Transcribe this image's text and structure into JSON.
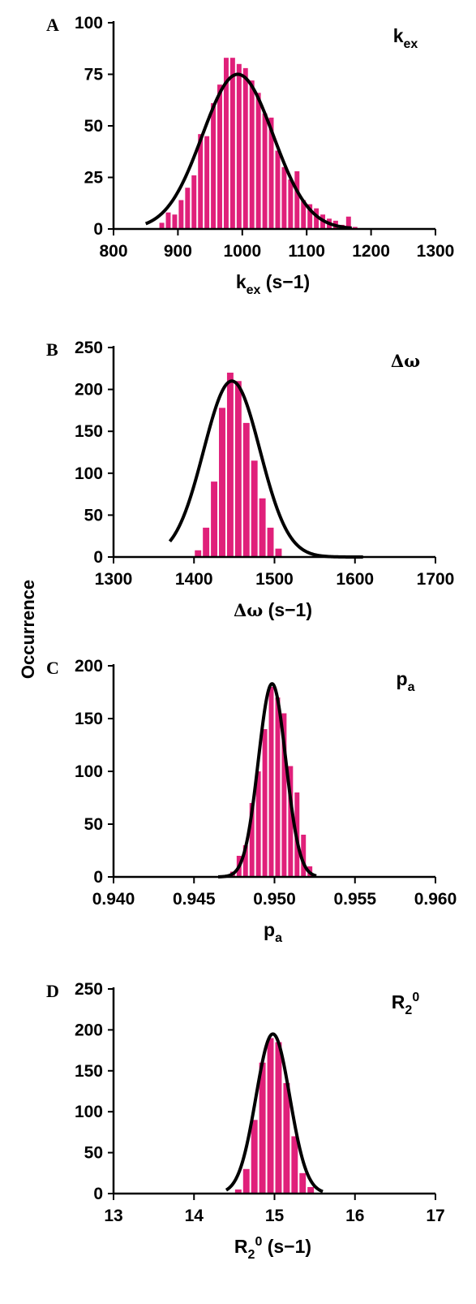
{
  "figure": {
    "ylabel": "Occurrence"
  },
  "chart_data": [
    {
      "type": "bar",
      "panel": "A",
      "param_label": {
        "base": "k",
        "sub": "ex",
        "sup": "",
        "serif": false
      },
      "xlabel": {
        "base": "k",
        "sub": "ex",
        "sup": "",
        "unit": " (s−1)",
        "serif": false
      },
      "xlim": [
        800,
        1300
      ],
      "xticks": [
        "800",
        "900",
        "1000",
        "1100",
        "1200",
        "1300"
      ],
      "ylim": [
        0,
        100
      ],
      "yticks": [
        "0",
        "25",
        "50",
        "75",
        "100"
      ],
      "bar_color": "#e0207a",
      "bar_width": 10,
      "bars": [
        {
          "x": 875,
          "y": 3
        },
        {
          "x": 885,
          "y": 8
        },
        {
          "x": 895,
          "y": 7
        },
        {
          "x": 905,
          "y": 14
        },
        {
          "x": 915,
          "y": 20
        },
        {
          "x": 925,
          "y": 26
        },
        {
          "x": 935,
          "y": 46
        },
        {
          "x": 945,
          "y": 45
        },
        {
          "x": 955,
          "y": 61
        },
        {
          "x": 965,
          "y": 70
        },
        {
          "x": 975,
          "y": 83
        },
        {
          "x": 985,
          "y": 83
        },
        {
          "x": 995,
          "y": 80
        },
        {
          "x": 1005,
          "y": 78
        },
        {
          "x": 1015,
          "y": 72
        },
        {
          "x": 1025,
          "y": 66
        },
        {
          "x": 1035,
          "y": 56
        },
        {
          "x": 1045,
          "y": 54
        },
        {
          "x": 1055,
          "y": 38
        },
        {
          "x": 1065,
          "y": 30
        },
        {
          "x": 1075,
          "y": 24
        },
        {
          "x": 1085,
          "y": 28
        },
        {
          "x": 1095,
          "y": 14
        },
        {
          "x": 1105,
          "y": 12
        },
        {
          "x": 1115,
          "y": 10
        },
        {
          "x": 1125,
          "y": 7
        },
        {
          "x": 1135,
          "y": 5
        },
        {
          "x": 1145,
          "y": 4
        },
        {
          "x": 1155,
          "y": 2
        },
        {
          "x": 1165,
          "y": 6
        },
        {
          "x": 1175,
          "y": 1
        }
      ],
      "fit": {
        "mu": 993,
        "sigma": 55,
        "amp": 75,
        "from": 850,
        "to": 1170
      }
    },
    {
      "type": "bar",
      "panel": "B",
      "param_label": {
        "base": "Δω",
        "sub": "",
        "sup": "",
        "serif": true
      },
      "xlabel": {
        "base": "Δω",
        "sub": "",
        "sup": "",
        "unit": " (s−1)",
        "serif": true
      },
      "xlim": [
        1300,
        1700
      ],
      "xticks": [
        "1300",
        "1400",
        "1500",
        "1600",
        "1700"
      ],
      "ylim": [
        0,
        250
      ],
      "yticks": [
        "0",
        "50",
        "100",
        "150",
        "200",
        "250"
      ],
      "bar_color": "#e0207a",
      "bar_width": 10,
      "bars": [
        {
          "x": 1405,
          "y": 8
        },
        {
          "x": 1415,
          "y": 35
        },
        {
          "x": 1425,
          "y": 90
        },
        {
          "x": 1435,
          "y": 178
        },
        {
          "x": 1445,
          "y": 220
        },
        {
          "x": 1455,
          "y": 210
        },
        {
          "x": 1465,
          "y": 160
        },
        {
          "x": 1475,
          "y": 115
        },
        {
          "x": 1485,
          "y": 70
        },
        {
          "x": 1495,
          "y": 35
        },
        {
          "x": 1505,
          "y": 10
        }
      ],
      "fit": {
        "mu": 1447,
        "sigma": 35,
        "amp": 210,
        "from": 1370,
        "to": 1610
      }
    },
    {
      "type": "bar",
      "panel": "C",
      "param_label": {
        "base": "p",
        "sub": "a",
        "sup": "",
        "serif": false
      },
      "xlabel": {
        "base": "p",
        "sub": "a",
        "sup": "",
        "unit": "",
        "serif": false
      },
      "xlim": [
        0.94,
        0.96
      ],
      "xticks": [
        "0.940",
        "0.945",
        "0.950",
        "0.955",
        "0.960"
      ],
      "ylim": [
        0,
        200
      ],
      "yticks": [
        "0",
        "50",
        "100",
        "150",
        "200"
      ],
      "bar_color": "#e0207a",
      "bar_width": 0.0004,
      "bars": [
        {
          "x": 0.9474,
          "y": 5
        },
        {
          "x": 0.9478,
          "y": 20
        },
        {
          "x": 0.9482,
          "y": 30
        },
        {
          "x": 0.9486,
          "y": 70
        },
        {
          "x": 0.949,
          "y": 100
        },
        {
          "x": 0.9494,
          "y": 140
        },
        {
          "x": 0.9498,
          "y": 180
        },
        {
          "x": 0.9502,
          "y": 170
        },
        {
          "x": 0.9506,
          "y": 155
        },
        {
          "x": 0.951,
          "y": 105
        },
        {
          "x": 0.9514,
          "y": 80
        },
        {
          "x": 0.9518,
          "y": 40
        },
        {
          "x": 0.9522,
          "y": 10
        }
      ],
      "fit": {
        "mu": 0.94985,
        "sigma": 0.00085,
        "amp": 183,
        "from": 0.9465,
        "to": 0.9526
      }
    },
    {
      "type": "bar",
      "panel": "D",
      "param_label": {
        "base": "R",
        "sub": "2",
        "sup": "0",
        "serif": false
      },
      "xlabel": {
        "base": "R",
        "sub": "2",
        "sup": "0",
        "unit": " (s−1)",
        "serif": false
      },
      "xlim": [
        13,
        17
      ],
      "xticks": [
        "13",
        "14",
        "15",
        "16",
        "17"
      ],
      "ylim": [
        0,
        250
      ],
      "yticks": [
        "0",
        "50",
        "100",
        "150",
        "200",
        "250"
      ],
      "bar_color": "#e0207a",
      "bar_width": 0.1,
      "bars": [
        {
          "x": 14.55,
          "y": 5
        },
        {
          "x": 14.65,
          "y": 30
        },
        {
          "x": 14.75,
          "y": 90
        },
        {
          "x": 14.85,
          "y": 160
        },
        {
          "x": 14.95,
          "y": 190
        },
        {
          "x": 15.05,
          "y": 185
        },
        {
          "x": 15.15,
          "y": 135
        },
        {
          "x": 15.25,
          "y": 70
        },
        {
          "x": 15.35,
          "y": 25
        },
        {
          "x": 15.45,
          "y": 8
        }
      ],
      "fit": {
        "mu": 14.98,
        "sigma": 0.21,
        "amp": 195,
        "from": 14.4,
        "to": 15.6
      }
    }
  ]
}
